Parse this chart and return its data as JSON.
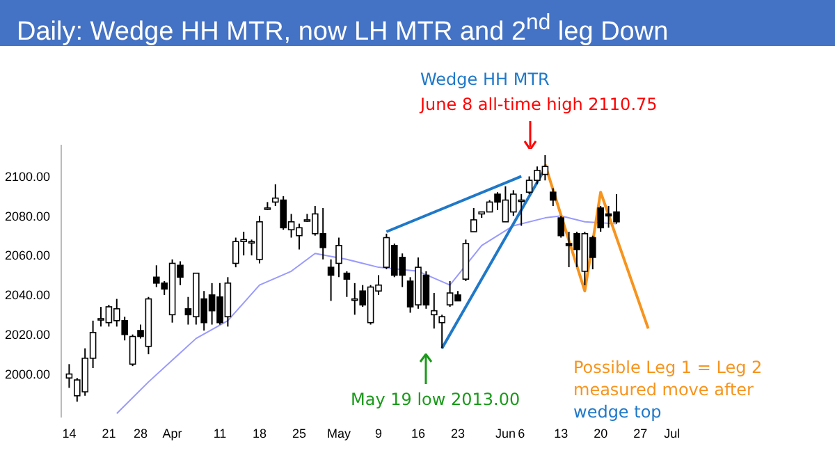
{
  "chart_data": {
    "type": "candlestick",
    "title": "Daily: Wedge HH MTR, now LH MTR and 2$^{nd}$ leg Down",
    "categories": [
      "14",
      null,
      null,
      null,
      null,
      "21",
      null,
      null,
      null,
      "28",
      null,
      null,
      null,
      "Apr",
      null,
      null,
      null,
      null,
      null,
      "11",
      null,
      null,
      null,
      null,
      "18",
      null,
      null,
      null,
      null,
      "25",
      null,
      null,
      null,
      null,
      "May",
      null,
      null,
      null,
      null,
      "9",
      null,
      null,
      null,
      null,
      "16",
      null,
      null,
      null,
      null,
      "23",
      null,
      null,
      null,
      null,
      null,
      "Jun",
      null,
      "6",
      null,
      null,
      null,
      null,
      "13",
      null,
      null,
      null,
      null,
      "20",
      null,
      null,
      null,
      null,
      "27",
      null,
      null,
      null,
      "Jul"
    ],
    "ohlc": [
      [
        1998,
        2005,
        1993,
        2000
      ],
      [
        1989,
        1998,
        1986,
        1997
      ],
      [
        1991,
        2013,
        1989,
        2008
      ],
      [
        2008,
        2027,
        2003,
        2021
      ],
      [
        2028,
        2034,
        2024,
        2028
      ],
      [
        2026,
        2035,
        2024,
        2034
      ],
      [
        2027,
        2038,
        2024,
        2033
      ],
      [
        2027,
        2029,
        2017,
        2020
      ],
      [
        2005,
        2020,
        2004,
        2019
      ],
      [
        2022,
        2025,
        2018,
        2019
      ],
      [
        2014,
        2039,
        2010,
        2038
      ],
      [
        2049,
        2055,
        2044,
        2046
      ],
      [
        2046,
        2047,
        2040,
        2043
      ],
      [
        2030,
        2058,
        2026,
        2056
      ],
      [
        2055,
        2057,
        2045,
        2049
      ],
      [
        2033,
        2039,
        2025,
        2030
      ],
      [
        2029,
        2051,
        2025,
        2051
      ],
      [
        2038,
        2042,
        2022,
        2026
      ],
      [
        2040,
        2046,
        2025,
        2032
      ],
      [
        2039,
        2046,
        2025,
        2026
      ],
      [
        2029,
        2049,
        2024,
        2046
      ],
      [
        2056,
        2069,
        2054,
        2067
      ],
      [
        2067,
        2072,
        2060,
        2068
      ],
      [
        2067,
        2068,
        2060,
        2067
      ],
      [
        2058,
        2080,
        2056,
        2077
      ],
      [
        2084,
        2087,
        2083,
        2084
      ],
      [
        2087,
        2096,
        2085,
        2089
      ],
      [
        2088,
        2090,
        2073,
        2074
      ],
      [
        2073,
        2081,
        2069,
        2077
      ],
      [
        2070,
        2076,
        2063,
        2074
      ],
      [
        2078,
        2081,
        2077,
        2078
      ],
      [
        2071,
        2085,
        2070,
        2081
      ],
      [
        2071,
        2084,
        2058,
        2064
      ],
      [
        2054,
        2058,
        2037,
        2050
      ],
      [
        2056,
        2069,
        2049,
        2065
      ],
      [
        2051,
        2052,
        2039,
        2048
      ],
      [
        2038,
        2046,
        2030,
        2038
      ],
      [
        2042,
        2045,
        2034,
        2035
      ],
      [
        2026,
        2045,
        2025,
        2044
      ],
      [
        2042,
        2050,
        2040,
        2045
      ],
      [
        2054,
        2071,
        2053,
        2069
      ],
      [
        2065,
        2066,
        2049,
        2050
      ],
      [
        2059,
        2061,
        2044,
        2050
      ],
      [
        2047,
        2049,
        2031,
        2034
      ],
      [
        2035,
        2059,
        2033,
        2054
      ],
      [
        2050,
        2052,
        2033,
        2035
      ],
      [
        2030,
        2041,
        2023,
        2032
      ],
      [
        2026,
        2030,
        2013,
        2029
      ],
      [
        2035,
        2047,
        2034,
        2041
      ],
      [
        2040,
        2042,
        2037,
        2037
      ],
      [
        2048,
        2068,
        2047,
        2066
      ],
      [
        2072,
        2084,
        2072,
        2078
      ],
      [
        2081,
        2082,
        2079,
        2082
      ],
      [
        2082,
        2088,
        2082,
        2087
      ],
      [
        2091,
        2092,
        2083,
        2087
      ],
      [
        2077,
        2095,
        2077,
        2088
      ],
      [
        2082,
        2093,
        2080,
        2091
      ],
      [
        2088,
        2091,
        2075,
        2088
      ],
      [
        2092,
        2100,
        2091,
        2098
      ],
      [
        2098,
        2105,
        2096,
        2103
      ],
      [
        2101,
        2110.75,
        2098,
        2105
      ],
      [
        2092,
        2094,
        2085,
        2088
      ],
      [
        2079,
        2080,
        2069,
        2070
      ],
      [
        2066,
        2072,
        2054,
        2065
      ],
      [
        2071,
        2072,
        2054,
        2063
      ],
      [
        2052,
        2072,
        2045,
        2071
      ],
      [
        2069,
        2070,
        2053,
        2059
      ],
      [
        2084,
        2085,
        2072,
        2074
      ],
      [
        2081,
        2085,
        2074,
        2080
      ],
      [
        2082,
        2091,
        2076,
        2077
      ],
      null,
      null,
      null,
      null,
      null,
      null,
      null
    ],
    "series": [
      {
        "type": "line",
        "color": "#9999ff",
        "values": [
          null,
          null,
          null,
          null,
          null,
          null,
          1980,
          null,
          null,
          null,
          1996,
          null,
          null,
          null,
          null,
          null,
          2018,
          null,
          null,
          null,
          2027,
          null,
          null,
          null,
          2045,
          null,
          null,
          null,
          2052,
          null,
          null,
          2061,
          null,
          null,
          null,
          2058,
          null,
          null,
          null,
          2054,
          null,
          null,
          null,
          null,
          2052,
          null,
          null,
          null,
          2045,
          null,
          null,
          null,
          2065,
          null,
          null,
          null,
          2075,
          null,
          null,
          null,
          2079,
          null,
          2080,
          null,
          null,
          2077,
          null,
          null,
          null,
          2076,
          null,
          null,
          null,
          null,
          null,
          null,
          null
        ]
      },
      {
        "type": "line",
        "color": "#1f78c8",
        "values": [
          null,
          null,
          null,
          null,
          null,
          null,
          null,
          null,
          null,
          null,
          null,
          null,
          null,
          null,
          null,
          null,
          null,
          null,
          null,
          null,
          null,
          null,
          null,
          null,
          null,
          null,
          null,
          null,
          null,
          null,
          null,
          null,
          null,
          null,
          null,
          null,
          null,
          null,
          null,
          null,
          2072,
          null,
          null,
          null,
          null,
          null,
          null,
          null,
          null,
          null,
          null,
          null,
          null,
          null,
          null,
          null,
          null,
          2100,
          null,
          null,
          null,
          null,
          null,
          null,
          null,
          null,
          null,
          null,
          null,
          null,
          null,
          null,
          null,
          null,
          null,
          null,
          null
        ]
      },
      {
        "type": "line",
        "color": "#1f78c8",
        "values": [
          null,
          null,
          null,
          null,
          null,
          null,
          null,
          null,
          null,
          null,
          null,
          null,
          null,
          null,
          null,
          null,
          null,
          null,
          null,
          null,
          null,
          null,
          null,
          null,
          null,
          null,
          null,
          null,
          null,
          null,
          null,
          null,
          null,
          null,
          null,
          null,
          null,
          null,
          null,
          null,
          null,
          null,
          null,
          null,
          null,
          null,
          null,
          2013,
          null,
          null,
          null,
          null,
          null,
          null,
          null,
          null,
          null,
          null,
          null,
          null,
          2104,
          null,
          null,
          null,
          null,
          null,
          null,
          null,
          null,
          null,
          null,
          null,
          null,
          null,
          null,
          null,
          null
        ]
      },
      {
        "type": "line",
        "color": "#f7941d",
        "values": [
          null,
          null,
          null,
          null,
          null,
          null,
          null,
          null,
          null,
          null,
          null,
          null,
          null,
          null,
          null,
          null,
          null,
          null,
          null,
          null,
          null,
          null,
          null,
          null,
          null,
          null,
          null,
          null,
          null,
          null,
          null,
          null,
          null,
          null,
          null,
          null,
          null,
          null,
          null,
          null,
          null,
          null,
          null,
          null,
          null,
          null,
          null,
          null,
          null,
          null,
          null,
          null,
          null,
          null,
          null,
          null,
          null,
          null,
          null,
          null,
          2106,
          null,
          null,
          null,
          null,
          2042,
          null,
          2092,
          null,
          null,
          null,
          null,
          null,
          2023,
          null,
          null,
          null
        ]
      }
    ],
    "ylim": [
      1978,
      2116
    ],
    "yticks": [
      {
        "value": 2000,
        "label": "2000.00"
      },
      {
        "value": 2020,
        "label": "2020.00"
      },
      {
        "value": 2040,
        "label": "2040.00"
      },
      {
        "value": 2060,
        "label": "2060.00"
      },
      {
        "value": 2080,
        "label": "2080.00"
      },
      {
        "value": 2100,
        "label": "2100.00"
      }
    ],
    "grid": false,
    "legend": false,
    "annotations": [
      "Wedge HH MTR",
      {
        "text": "June 8 all-time high 2110.75",
        "y": 2110.75
      },
      {
        "text": "May 19 low 2013.00",
        "y": 2013
      },
      "Possible Leg 1 = Leg 2 measured move after",
      "wedge top"
    ]
  }
}
